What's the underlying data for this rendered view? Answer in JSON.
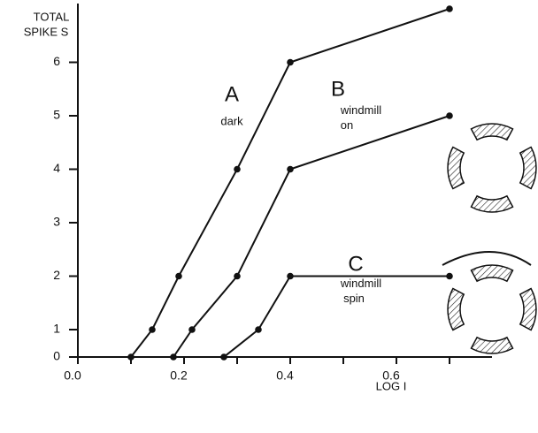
{
  "chart_data": {
    "type": "line",
    "ylabel": [
      "TOTAL",
      "SPIKE S"
    ],
    "xlabel": "LOG I",
    "series": [
      {
        "name": "A",
        "note": "dark",
        "color": "#111111",
        "x": [
          0.1,
          0.14,
          0.19,
          0.3,
          0.4,
          0.7
        ],
        "values": [
          0,
          1,
          2,
          4,
          6,
          7
        ]
      },
      {
        "name": "B",
        "note": "windmill on",
        "color": "#111111",
        "x": [
          0.18,
          0.215,
          0.3,
          0.4,
          0.7
        ],
        "values": [
          0,
          1,
          2,
          4,
          5
        ]
      },
      {
        "name": "C",
        "note": "windmill spin",
        "color": "#111111",
        "x": [
          0.275,
          0.34,
          0.4,
          0.7
        ],
        "values": [
          0,
          1,
          2,
          2
        ]
      }
    ],
    "xlim": [
      0,
      0.78
    ],
    "ylim": [
      0,
      7.1
    ],
    "xticks": [
      {
        "value": 0,
        "label": "0.0"
      },
      0.2,
      0.4,
      0.6
    ],
    "xminorticks": [
      0.1,
      0.3,
      0.5,
      0.7
    ],
    "yticks": [
      0,
      1,
      2,
      3,
      4,
      5,
      6
    ]
  }
}
